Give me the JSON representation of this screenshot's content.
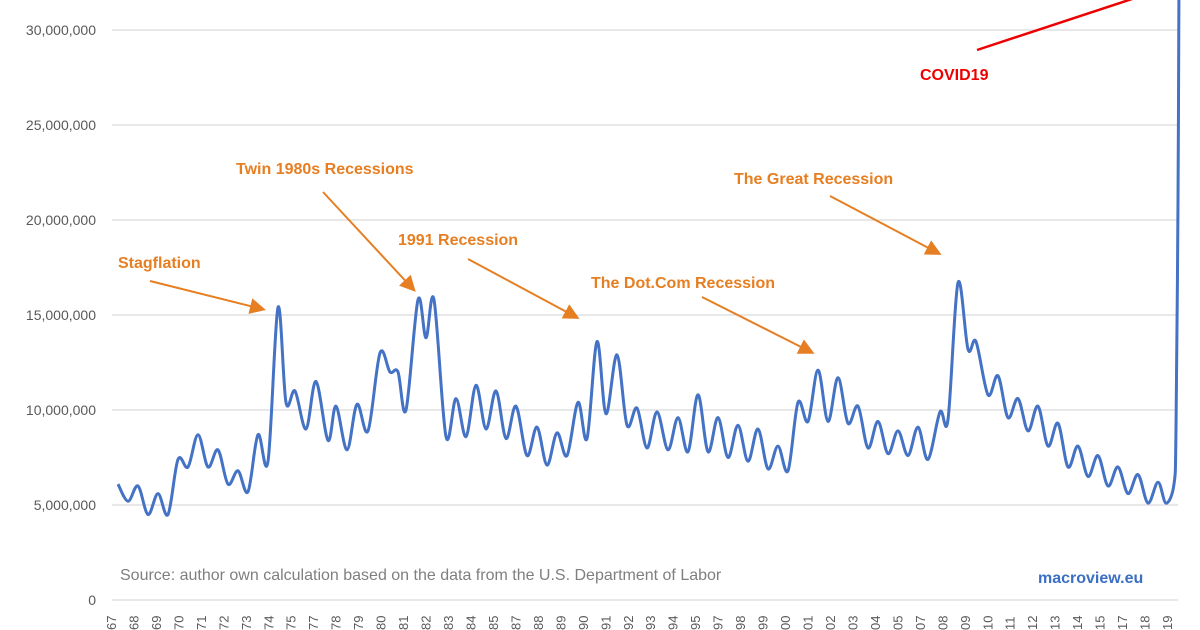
{
  "chart_data": {
    "type": "line",
    "title": "",
    "xlabel": "",
    "ylabel": "",
    "ylim": [
      0,
      32000000
    ],
    "yticks": [
      "0",
      "5,000,000",
      "10,000,000",
      "15,000,000",
      "20,000,000",
      "25,000,000",
      "30,000,000"
    ],
    "xtick_labels": [
      "67",
      "68",
      "69",
      "70",
      "71",
      "72",
      "73",
      "74",
      "75",
      "77",
      "78",
      "79",
      "80",
      "81",
      "82",
      "83",
      "84",
      "85",
      "87",
      "88",
      "89",
      "90",
      "91",
      "92",
      "93",
      "94",
      "95",
      "97",
      "98",
      "99",
      "00",
      "01",
      "02",
      "03",
      "04",
      "05",
      "07",
      "08",
      "09",
      "10",
      "11",
      "12",
      "13",
      "14",
      "15",
      "17",
      "18",
      "19"
    ],
    "grid": "horizontal",
    "series": [
      {
        "color": "#4472c4",
        "x": [
          1967.0,
          1967.5,
          1968.0,
          1968.5,
          1969.0,
          1969.5,
          1970.0,
          1970.5,
          1971.0,
          1971.5,
          1972.0,
          1972.5,
          1973.0,
          1973.5,
          1974.0,
          1974.5,
          1975.0,
          1975.4,
          1975.85,
          1976.4,
          1976.9,
          1977.5,
          1977.9,
          1978.45,
          1978.95,
          1979.5,
          1980.1,
          1980.6,
          1981.0,
          1981.4,
          1982.0,
          1982.4,
          1982.8,
          1983.4,
          1983.9,
          1984.4,
          1984.9,
          1985.4,
          1985.9,
          1986.4,
          1986.9,
          1987.45,
          1987.95,
          1988.45,
          1988.95,
          1989.45,
          1990.0,
          1990.45,
          1990.95,
          1991.4,
          1991.95,
          1992.45,
          1992.95,
          1993.45,
          1993.95,
          1994.5,
          1995.0,
          1995.5,
          1996.0,
          1996.5,
          1997.0,
          1997.5,
          1998.0,
          1998.5,
          1999.0,
          1999.5,
          2000.0,
          2000.5,
          2001.0,
          2001.5,
          2002.0,
          2002.5,
          2003.0,
          2003.5,
          2004.0,
          2004.5,
          2005.0,
          2005.5,
          2006.0,
          2006.5,
          2007.0,
          2007.5,
          2008.1,
          2008.5,
          2009.0,
          2009.5,
          2009.9,
          2010.5,
          2011.0,
          2011.5,
          2012.0,
          2012.5,
          2013.0,
          2013.5,
          2014.0,
          2014.5,
          2015.0,
          2015.5,
          2016.0,
          2016.5,
          2017.0,
          2017.5,
          2018.0,
          2018.5,
          2019.0,
          2019.4,
          2019.8,
          2019.9,
          2020.0,
          2020.05
        ],
        "y": [
          6100000,
          5200000,
          6000000,
          4500000,
          5600000,
          4500000,
          7400000,
          7000000,
          8700000,
          7000000,
          7900000,
          6100000,
          6800000,
          5700000,
          8700000,
          7300000,
          15400000,
          10400000,
          11000000,
          9000000,
          11500000,
          8400000,
          10200000,
          7900000,
          10300000,
          8900000,
          13000000,
          12000000,
          12000000,
          10000000,
          15800000,
          13800000,
          15800000,
          8600000,
          10600000,
          8600000,
          11300000,
          9000000,
          11000000,
          8500000,
          10200000,
          7600000,
          9100000,
          7100000,
          8800000,
          7600000,
          10400000,
          8500000,
          13600000,
          9800000,
          12900000,
          9200000,
          10100000,
          8000000,
          9900000,
          7900000,
          9600000,
          7800000,
          10800000,
          7800000,
          9600000,
          7500000,
          9200000,
          7300000,
          9000000,
          6900000,
          8100000,
          6800000,
          10400000,
          9400000,
          12100000,
          9400000,
          11700000,
          9300000,
          10200000,
          8000000,
          9400000,
          7700000,
          8900000,
          7600000,
          9100000,
          7400000,
          9900000,
          9500000,
          16700000,
          13200000,
          13600000,
          10800000,
          11800000,
          9600000,
          10600000,
          8900000,
          10200000,
          8100000,
          9300000,
          7000000,
          8100000,
          6500000,
          7600000,
          6000000,
          7000000,
          5600000,
          6600000,
          5100000,
          6200000,
          5100000,
          6100000,
          9000000,
          21000000,
          33000000
        ]
      }
    ],
    "annotations": [
      {
        "text": "Stagflation",
        "color": "#e67e22"
      },
      {
        "text": "Twin 1980s Recessions",
        "color": "#e67e22"
      },
      {
        "text": "1991 Recession",
        "color": "#e67e22"
      },
      {
        "text": "The Dot.Com Recession",
        "color": "#e67e22"
      },
      {
        "text": "The Great Recession",
        "color": "#e67e22"
      },
      {
        "text": "COVID19",
        "color": "#ee0000"
      }
    ],
    "source": "Source: author own calculation based on the data from the U.S. Department of Labor",
    "brand": "macroview.eu"
  }
}
